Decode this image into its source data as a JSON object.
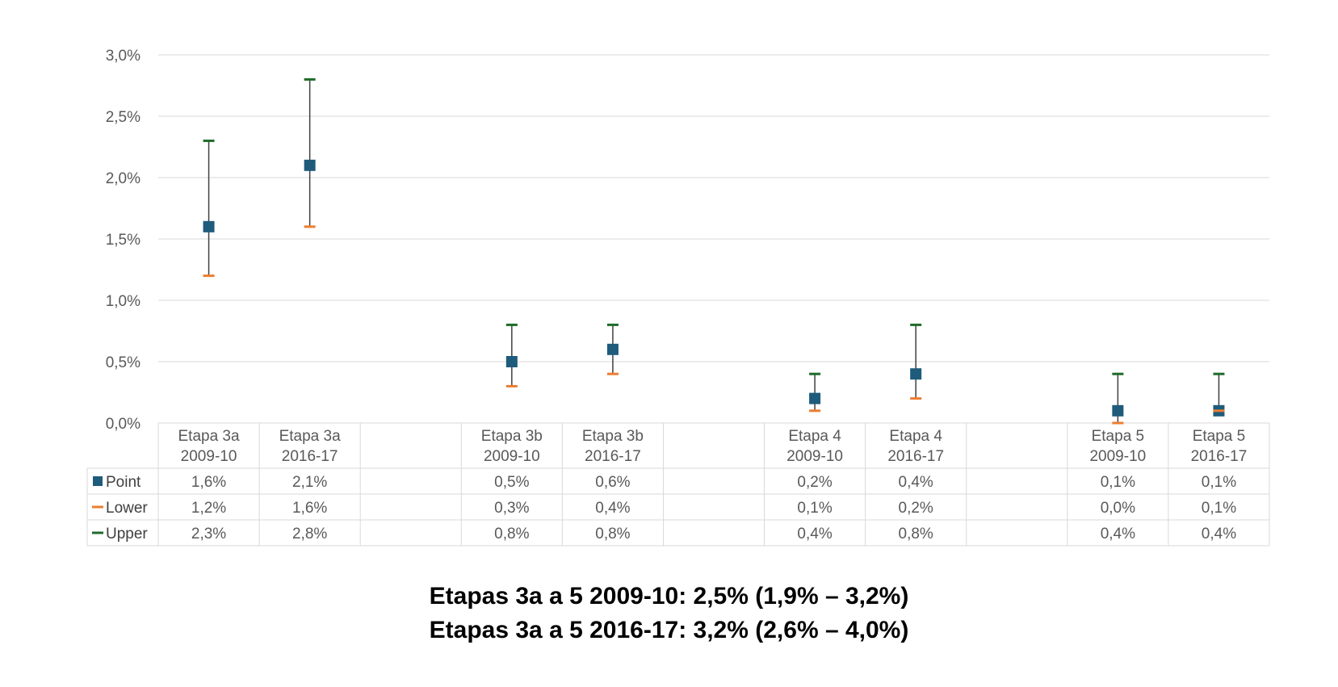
{
  "chart_data": {
    "type": "scatter",
    "title": "",
    "xlabel": "",
    "ylabel": "",
    "ylim": [
      0,
      0.03
    ],
    "yticks": [
      "0,0%",
      "0,5%",
      "1,0%",
      "1,5%",
      "2,0%",
      "2,5%",
      "3,0%"
    ],
    "grid": true,
    "legend": "in data table, left",
    "categories": [
      [
        "Etapa 3a",
        "2009-10"
      ],
      [
        "Etapa 3a",
        "2016-17"
      ],
      [
        "",
        ""
      ],
      [
        "Etapa 3b",
        "2009-10"
      ],
      [
        "Etapa 3b",
        "2016-17"
      ],
      [
        "",
        ""
      ],
      [
        "Etapa 4",
        "2009-10"
      ],
      [
        "Etapa 4",
        "2016-17"
      ],
      [
        "",
        ""
      ],
      [
        "Etapa 5",
        "2009-10"
      ],
      [
        "Etapa 5",
        "2016-17"
      ]
    ],
    "series": [
      {
        "name": "Point",
        "color": "#1f5b7a",
        "marker": "square",
        "values": [
          0.016,
          0.021,
          null,
          0.005,
          0.006,
          null,
          0.002,
          0.004,
          null,
          0.001,
          0.001
        ],
        "labels": [
          "1,6%",
          "2,1%",
          "",
          "0,5%",
          "0,6%",
          "",
          "0,2%",
          "0,4%",
          "",
          "0,1%",
          "0,1%"
        ]
      },
      {
        "name": "Lower",
        "color": "#ed7d31",
        "marker": "dash",
        "values": [
          0.012,
          0.016,
          null,
          0.003,
          0.004,
          null,
          0.001,
          0.002,
          null,
          0.0,
          0.001
        ],
        "labels": [
          "1,2%",
          "1,6%",
          "",
          "0,3%",
          "0,4%",
          "",
          "0,1%",
          "0,2%",
          "",
          "0,0%",
          "0,1%"
        ]
      },
      {
        "name": "Upper",
        "color": "#1e6b2a",
        "marker": "dash",
        "values": [
          0.023,
          0.028,
          null,
          0.008,
          0.008,
          null,
          0.004,
          0.008,
          null,
          0.004,
          0.004
        ],
        "labels": [
          "2,3%",
          "2,8%",
          "",
          "0,8%",
          "0,8%",
          "",
          "0,4%",
          "0,8%",
          "",
          "0,4%",
          "0,4%"
        ]
      }
    ]
  },
  "footer": {
    "line1": "Etapas 3a a 5 2009-10: 2,5% (1,9% – 3,2%)",
    "line2": "Etapas 3a a 5 2016-17: 3,2% (2,6% – 4,0%)"
  }
}
